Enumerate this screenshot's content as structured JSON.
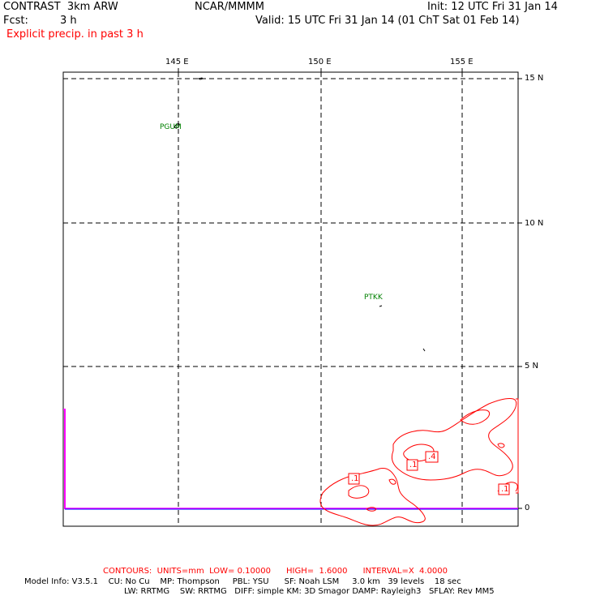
{
  "header": {
    "model": "CONTRAST  3km ARW",
    "org": "NCAR/MMMM",
    "init": "Init: 12 UTC Fri 31 Jan 14",
    "fcst_label": "Fcst:",
    "fcst_value": "3 h",
    "valid": "Valid: 15 UTC Fri 31 Jan 14 (01 ChT Sat 01 Feb 14)",
    "field": "Explicit precip. in past 3 h"
  },
  "map": {
    "lon_labels": [
      "145 E",
      "150 E",
      "155 E"
    ],
    "lat_labels": [
      "15 N",
      "10 N",
      "5 N",
      "0"
    ],
    "stations": [
      "PGUM",
      "PTKK"
    ],
    "contour_labels": [
      ".1",
      ".1",
      ".4",
      ".1"
    ],
    "colors": {
      "frame": "#000000",
      "grid": "#000000",
      "contour": "#ff0000",
      "equator": "#0000ff",
      "edge": "#ff00ff",
      "station": "#008000"
    }
  },
  "footer": {
    "contours": "CONTOURS:  UNITS=mm  LOW= 0.10000      HIGH=  1.6000      INTERVAL=X  4.0000",
    "model_info": "Model Info: V3.5.1    CU: No Cu    MP: Thompson     PBL: YSU      SF: Noah LSM     3.0 km   39 levels    18 sec",
    "physics": "LW: RRTMG    SW: RRTMG   DIFF: simple KM: 3D Smagor DAMP: Rayleigh3   SFLAY: Rev MM5"
  }
}
